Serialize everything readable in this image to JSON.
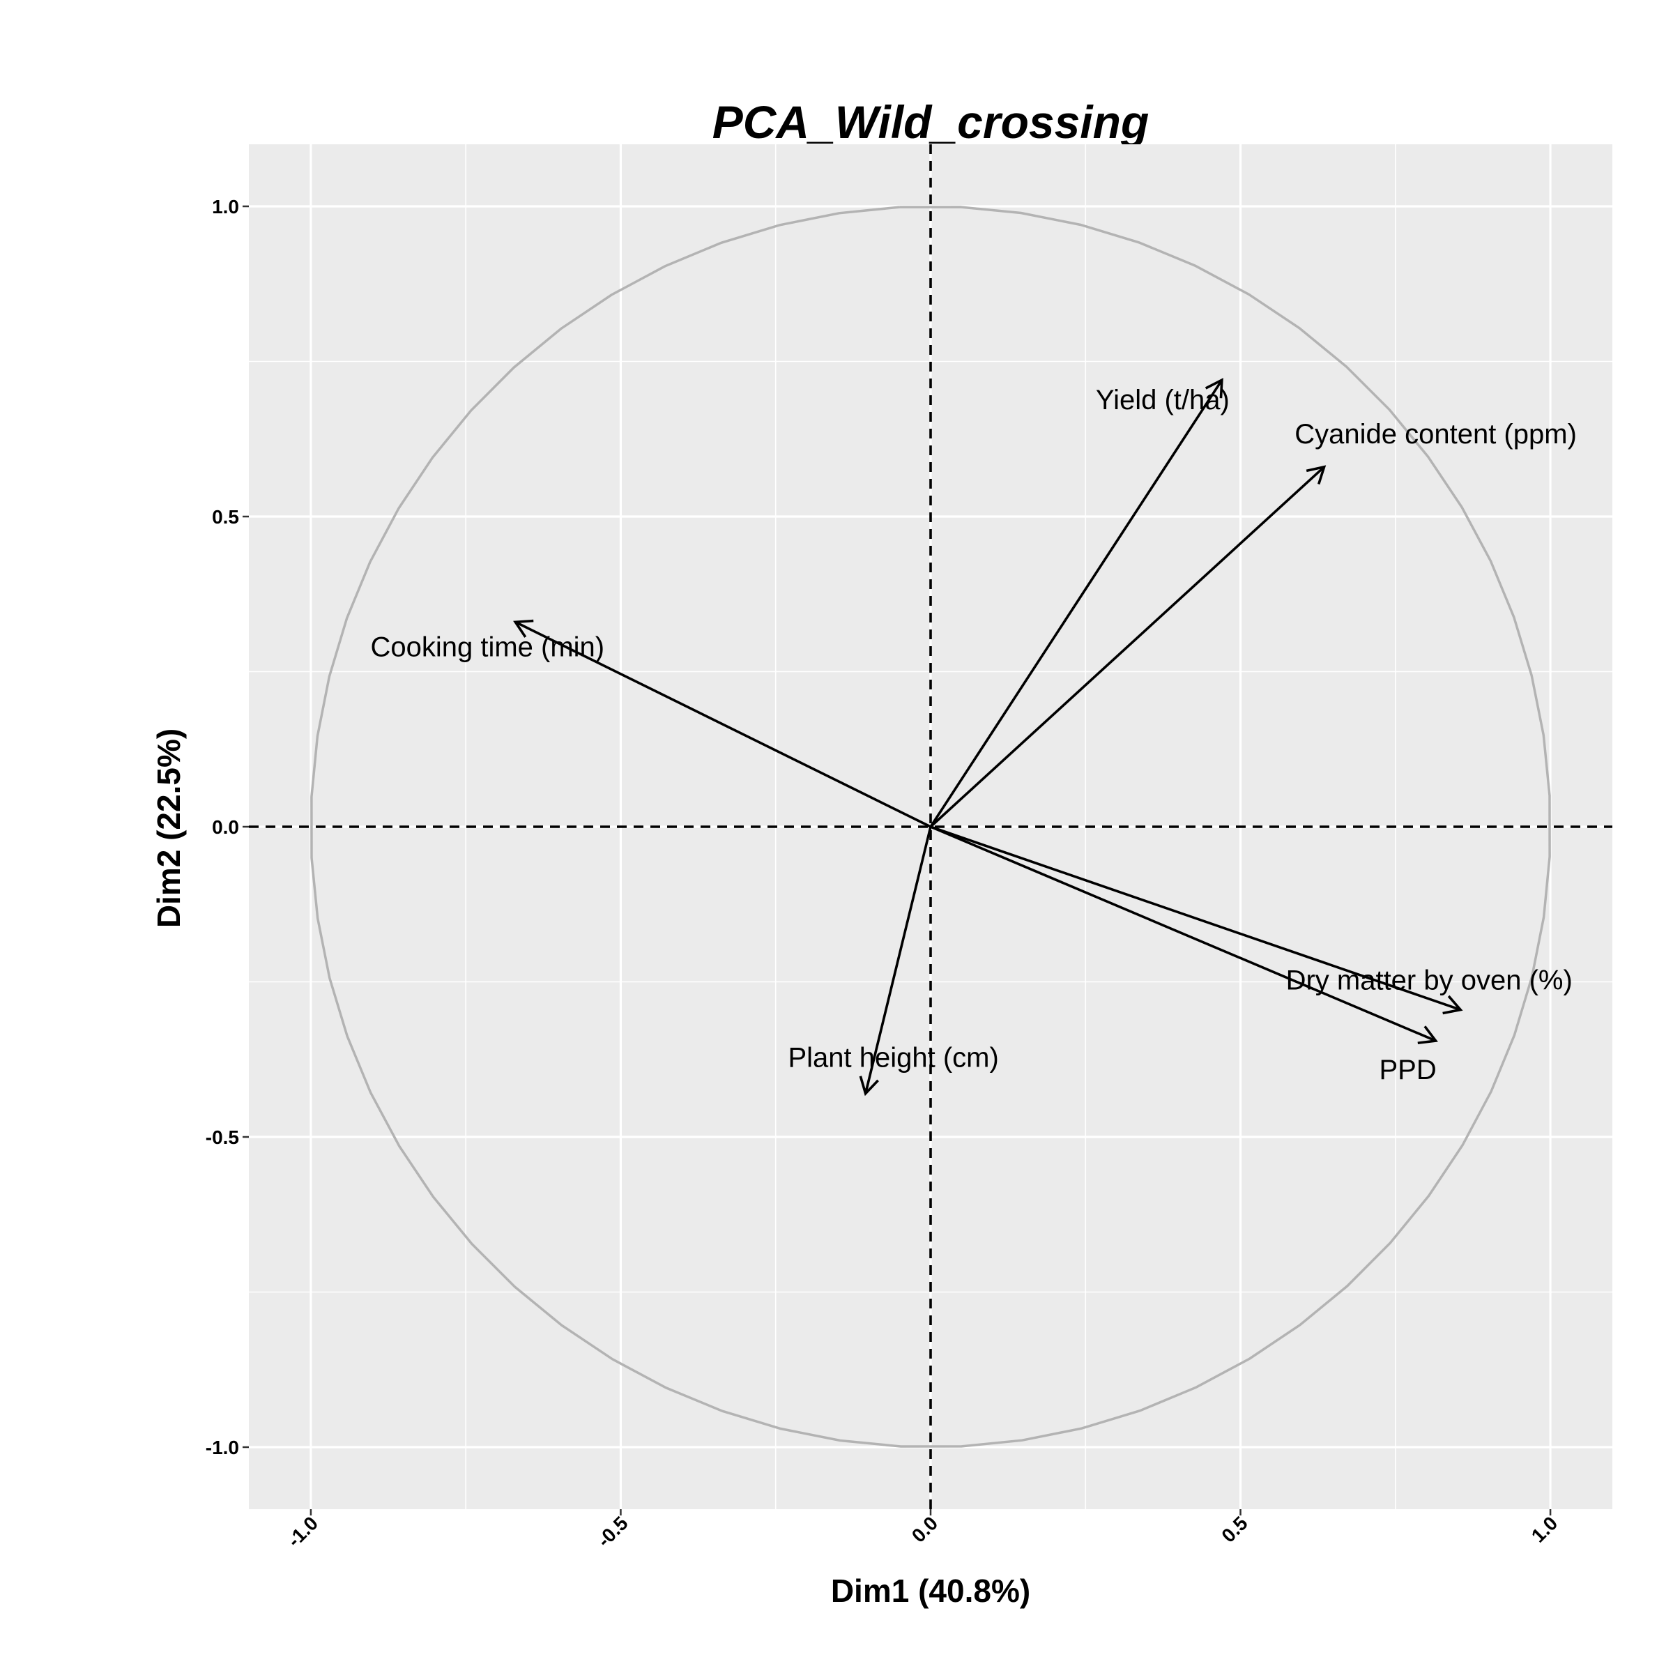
{
  "chart_data": {
    "type": "scatter",
    "subtype": "pca-variable-correlation-circle",
    "title": "PCA_Wild_crossing",
    "xlabel": "Dim1 (40.8%)",
    "ylabel": "Dim2 (22.5%)",
    "xlim": [
      -1.1,
      1.1
    ],
    "ylim": [
      -1.1,
      1.1
    ],
    "x_ticks": [
      -1.0,
      -0.5,
      0.0,
      0.5,
      1.0
    ],
    "x_tick_labels": [
      "-1.0",
      "-0.5",
      "0.0",
      "0.5",
      "1.0"
    ],
    "y_ticks": [
      -1.0,
      -0.5,
      0.0,
      0.5,
      1.0
    ],
    "y_tick_labels": [
      "-1.0",
      "-0.5",
      "0.0",
      "0.5",
      "1.0"
    ],
    "grid": true,
    "unit_circle": true,
    "reference_lines": [
      "x = 0 dashed",
      "y = 0 dashed"
    ],
    "colors": {
      "panel_background": "#EBEBEB",
      "grid_line": "#FFFFFF",
      "circle": "#B3B3B3",
      "arrow": "#000000"
    },
    "variables": [
      {
        "name": "Yield (t/ha)",
        "x": 0.47,
        "y": 0.72
      },
      {
        "name": "Cyanide content (ppm)",
        "x": 0.635,
        "y": 0.58
      },
      {
        "name": "Cooking time (min)",
        "x": -0.67,
        "y": 0.33
      },
      {
        "name": "Dry matter by oven (%)",
        "x": 0.855,
        "y": -0.295
      },
      {
        "name": "PPD",
        "x": 0.815,
        "y": -0.345
      },
      {
        "name": "Plant height (cm)",
        "x": -0.105,
        "y": -0.43
      }
    ]
  }
}
